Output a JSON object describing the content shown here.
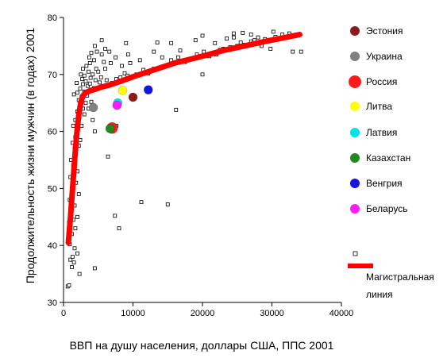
{
  "chart_data": {
    "type": "scatter",
    "xlabel": "ВВП на душу населения, доллары США, ППС 2001",
    "ylabel": "Продолжительность жизни мужчин (в годах) 2001",
    "xlim": [
      0,
      40000
    ],
    "ylim": [
      30,
      80
    ],
    "x_ticks": [
      "0",
      "10000",
      "20000",
      "30000",
      "40000"
    ],
    "y_ticks": [
      "30",
      "40",
      "50",
      "60",
      "70",
      "80"
    ],
    "x_tick_values": [
      0,
      10000,
      20000,
      30000,
      40000
    ],
    "y_tick_values": [
      30,
      40,
      50,
      60,
      70,
      80
    ],
    "grid": false,
    "legend_position": "right",
    "highlighted": [
      {
        "name": "Эстония",
        "x": 10000,
        "y": 66.0,
        "color": "#8b1a1a"
      },
      {
        "name": "Украина",
        "x": 4300,
        "y": 64.2,
        "color": "#808080"
      },
      {
        "name": "Россия",
        "x": 7000,
        "y": 60.6,
        "color": "#ff1a1a"
      },
      {
        "name": "Литва",
        "x": 8500,
        "y": 67.2,
        "color": "#ffff00"
      },
      {
        "name": "Латвия",
        "x": 7800,
        "y": 65.0,
        "color": "#00e5e5"
      },
      {
        "name": "Казахстан",
        "x": 6700,
        "y": 60.5,
        "color": "#1e8b1e"
      },
      {
        "name": "Венгрия",
        "x": 12200,
        "y": 67.3,
        "color": "#1515e0"
      },
      {
        "name": "Беларусь",
        "x": 7700,
        "y": 64.6,
        "color": "#ff1aff"
      }
    ],
    "points_label": "",
    "points": [
      [
        600,
        32.8
      ],
      [
        800,
        33
      ],
      [
        1200,
        36.2
      ],
      [
        1000,
        37.5
      ],
      [
        1500,
        37
      ],
      [
        2300,
        35
      ],
      [
        4500,
        36
      ],
      [
        1300,
        38
      ],
      [
        2000,
        38.6
      ],
      [
        1600,
        39.5
      ],
      [
        900,
        40.2
      ],
      [
        700,
        41
      ],
      [
        1200,
        42
      ],
      [
        1700,
        43
      ],
      [
        800,
        44
      ],
      [
        1400,
        44.5
      ],
      [
        2000,
        45
      ],
      [
        1000,
        46
      ],
      [
        1600,
        47
      ],
      [
        900,
        48
      ],
      [
        1200,
        48.5
      ],
      [
        2200,
        49
      ],
      [
        1300,
        50
      ],
      [
        1800,
        51
      ],
      [
        1000,
        52
      ],
      [
        1500,
        52.5
      ],
      [
        2000,
        53
      ],
      [
        1400,
        54
      ],
      [
        1100,
        55
      ],
      [
        1800,
        56
      ],
      [
        1600,
        57
      ],
      [
        2200,
        57.5
      ],
      [
        1300,
        58
      ],
      [
        2400,
        58.5
      ],
      [
        1700,
        59
      ],
      [
        1900,
        60
      ],
      [
        2100,
        60.5
      ],
      [
        1400,
        61
      ],
      [
        2600,
        61
      ],
      [
        1700,
        62
      ],
      [
        2300,
        62.5
      ],
      [
        3000,
        63
      ],
      [
        2000,
        63.5
      ],
      [
        2800,
        64
      ],
      [
        3600,
        64
      ],
      [
        2500,
        64.5
      ],
      [
        3200,
        65
      ],
      [
        2200,
        65.5
      ],
      [
        4000,
        65.2
      ],
      [
        2600,
        66
      ],
      [
        3400,
        66.3
      ],
      [
        1500,
        66.5
      ],
      [
        2000,
        66.8
      ],
      [
        3000,
        67
      ],
      [
        3800,
        67.2
      ],
      [
        2400,
        67.5
      ],
      [
        4400,
        67.6
      ],
      [
        3500,
        68
      ],
      [
        2800,
        68.3
      ],
      [
        1900,
        68.5
      ],
      [
        3200,
        68.8
      ],
      [
        4600,
        69
      ],
      [
        2700,
        69.2
      ],
      [
        3900,
        69.4
      ],
      [
        5400,
        69.5
      ],
      [
        3000,
        69.8
      ],
      [
        2500,
        70
      ],
      [
        4200,
        70
      ],
      [
        3600,
        70.5
      ],
      [
        5000,
        70.5
      ],
      [
        2800,
        71
      ],
      [
        4700,
        71
      ],
      [
        3300,
        71.5
      ],
      [
        6000,
        71
      ],
      [
        3800,
        72
      ],
      [
        5800,
        72.2
      ],
      [
        4400,
        72.5
      ],
      [
        6800,
        72
      ],
      [
        3700,
        73
      ],
      [
        5500,
        73.5
      ],
      [
        4000,
        73.8
      ],
      [
        7500,
        73
      ],
      [
        4800,
        74
      ],
      [
        6600,
        74
      ],
      [
        4500,
        75
      ],
      [
        5500,
        76
      ],
      [
        6000,
        74.5
      ],
      [
        3800,
        68.4
      ],
      [
        5200,
        68.6
      ],
      [
        6200,
        69
      ],
      [
        7000,
        68.5
      ],
      [
        7600,
        69.2
      ],
      [
        8200,
        69.5
      ],
      [
        8800,
        70.2
      ],
      [
        9200,
        69.8
      ],
      [
        10500,
        70
      ],
      [
        11500,
        70.8
      ],
      [
        12200,
        70.4
      ],
      [
        13000,
        71
      ],
      [
        8400,
        71.5
      ],
      [
        9600,
        72
      ],
      [
        11000,
        72.5
      ],
      [
        9300,
        73.5
      ],
      [
        13000,
        74
      ],
      [
        14200,
        73
      ],
      [
        15500,
        72.5
      ],
      [
        16500,
        73
      ],
      [
        17500,
        72.2
      ],
      [
        18500,
        72.8
      ],
      [
        19200,
        73.5
      ],
      [
        20200,
        74
      ],
      [
        21000,
        73.2
      ],
      [
        22000,
        73.5
      ],
      [
        22500,
        74.3
      ],
      [
        23000,
        74.5
      ],
      [
        24000,
        74.8
      ],
      [
        25000,
        75
      ],
      [
        25500,
        75.6
      ],
      [
        26000,
        75.2
      ],
      [
        27000,
        75.8
      ],
      [
        27500,
        76
      ],
      [
        28000,
        76.5
      ],
      [
        29000,
        76.2
      ],
      [
        30500,
        76.6
      ],
      [
        31500,
        77
      ],
      [
        32500,
        77.2
      ],
      [
        24500,
        76.5
      ],
      [
        25800,
        77.3
      ],
      [
        19000,
        76
      ],
      [
        20000,
        76.8
      ],
      [
        21800,
        75.5
      ],
      [
        15500,
        75.5
      ],
      [
        13500,
        75.6
      ],
      [
        16800,
        74.2
      ],
      [
        23500,
        76.3
      ],
      [
        28500,
        75
      ],
      [
        29800,
        74.5
      ],
      [
        33000,
        74
      ],
      [
        34200,
        74
      ],
      [
        30200,
        77.5
      ],
      [
        20000,
        70
      ],
      [
        16200,
        63.8
      ],
      [
        15000,
        47.2
      ],
      [
        11200,
        47.6
      ],
      [
        7400,
        45.2
      ],
      [
        8000,
        43
      ],
      [
        6400,
        55.6
      ],
      [
        4500,
        60
      ],
      [
        4200,
        62
      ],
      [
        6400,
        60.5
      ],
      [
        7600,
        61
      ],
      [
        9000,
        75.5
      ],
      [
        12200,
        70.2
      ],
      [
        24500,
        77.2
      ],
      [
        27000,
        77
      ]
    ],
    "series": [
      {
        "name": "Магистральная линия",
        "color": "#ff0000",
        "x": [
          700,
          1000,
          1300,
          1600,
          1900,
          2200,
          2500,
          2800,
          3200,
          3700,
          4500,
          5500,
          6500,
          8000,
          10000,
          12000,
          14000,
          16000,
          18000,
          20000,
          23000,
          26000,
          29000,
          32000,
          34000
        ],
        "y": [
          40.5,
          45,
          50,
          55,
          59.5,
          63,
          65.2,
          66.3,
          66.8,
          67.1,
          67.4,
          67.8,
          68.1,
          68.7,
          69.6,
          70.4,
          71.2,
          72.0,
          72.6,
          73.2,
          74.2,
          75.0,
          75.8,
          76.5,
          77.0
        ]
      }
    ],
    "legend": [
      {
        "label": "Эстония",
        "color": "#8b1a1a",
        "kind": "dot"
      },
      {
        "label": "Украина",
        "color": "#808080",
        "kind": "dot"
      },
      {
        "label": "Россия",
        "color": "#ff1a1a",
        "kind": "bigdot"
      },
      {
        "label": "Литва",
        "color": "#ffff00",
        "kind": "dot"
      },
      {
        "label": "Латвия",
        "color": "#00e5e5",
        "kind": "dot"
      },
      {
        "label": "Казахстан",
        "color": "#1e8b1e",
        "kind": "dot"
      },
      {
        "label": "Венгрия",
        "color": "#1515e0",
        "kind": "dot"
      },
      {
        "label": "Беларусь",
        "color": "#ff1aff",
        "kind": "dot"
      },
      {
        "label": "",
        "color": "#000000",
        "kind": "square"
      },
      {
        "label": "Магистральная линия",
        "color": "#ff0000",
        "kind": "line"
      }
    ]
  }
}
